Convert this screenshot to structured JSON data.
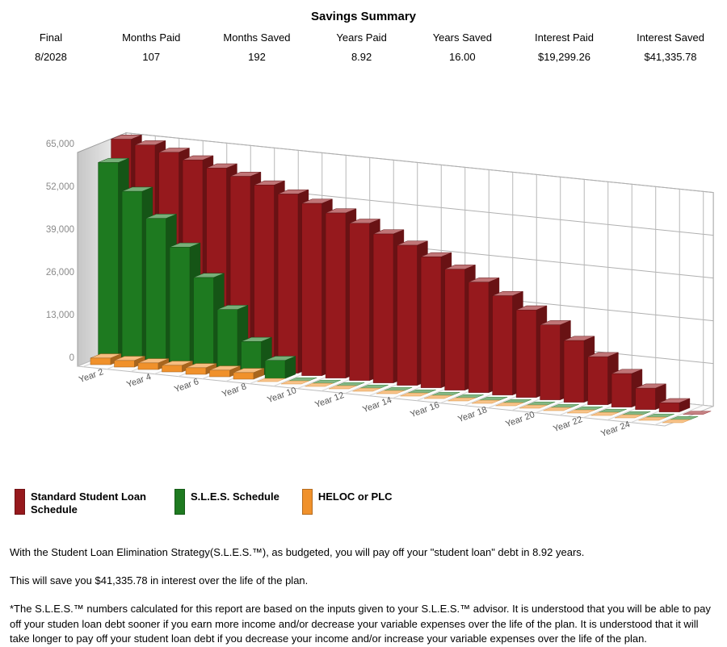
{
  "header": {
    "title": "Savings Summary",
    "columns": [
      {
        "label": "Final",
        "value": "8/2028"
      },
      {
        "label": "Months Paid",
        "value": "107"
      },
      {
        "label": "Months Saved",
        "value": "192"
      },
      {
        "label": "Years Paid",
        "value": "8.92"
      },
      {
        "label": "Years Saved",
        "value": "16.00"
      },
      {
        "label": "Interest Paid",
        "value": "$19,299.26"
      },
      {
        "label": "Interest Saved",
        "value": "$41,335.78"
      }
    ]
  },
  "chart_data": {
    "type": "bar",
    "style": "3d",
    "title": "",
    "xlabel": "",
    "ylabel": "",
    "ylim": [
      0,
      65000
    ],
    "yticks": [
      0,
      13000,
      26000,
      39000,
      52000,
      65000
    ],
    "grid": true,
    "legend_position": "bottom",
    "categories": [
      "Year 2",
      "Year 3",
      "Year 4",
      "Year 5",
      "Year 6",
      "Year 7",
      "Year 8",
      "Year 9",
      "Year 10",
      "Year 11",
      "Year 12",
      "Year 13",
      "Year 14",
      "Year 15",
      "Year 16",
      "Year 17",
      "Year 18",
      "Year 19",
      "Year 20",
      "Year 21",
      "Year 22",
      "Year 23",
      "Year 24",
      "Year 25",
      "Year 26"
    ],
    "x_tick_labels_shown": [
      "Year 2",
      "Year 4",
      "Year 6",
      "Year 8",
      "Year 10",
      "Year 12",
      "Year 14",
      "Year 16",
      "Year 18",
      "Year 20",
      "Year 22",
      "Year 24"
    ],
    "series": [
      {
        "name": "Standard Student Loan Schedule",
        "color": "#96191d",
        "values": [
          66000,
          65000,
          63500,
          61900,
          60200,
          58400,
          56500,
          54500,
          52400,
          50200,
          47800,
          45300,
          42600,
          39800,
          36800,
          33600,
          30200,
          26600,
          22800,
          18800,
          14600,
          10200,
          6500,
          2800,
          0
        ]
      },
      {
        "name": "S.L.E.S. Schedule",
        "color": "#1e7a20",
        "values": [
          60500,
          52500,
          45000,
          37000,
          28500,
          19500,
          10500,
          5500,
          0,
          0,
          0,
          0,
          0,
          0,
          0,
          0,
          0,
          0,
          0,
          0,
          0,
          0,
          0,
          0,
          0
        ]
      },
      {
        "name": "HELOC or PLC",
        "color": "#f0912b",
        "values": [
          2000,
          2000,
          2000,
          2000,
          2000,
          2000,
          2000,
          0,
          0,
          0,
          0,
          0,
          0,
          0,
          0,
          0,
          0,
          0,
          0,
          0,
          0,
          0,
          0,
          0,
          0
        ]
      }
    ]
  },
  "legend": {
    "items": [
      {
        "label": "Standard Student Loan Schedule",
        "color": "#96191d"
      },
      {
        "label": "S.L.E.S. Schedule",
        "color": "#1e7a20"
      },
      {
        "label": "HELOC or PLC",
        "color": "#f0912b"
      }
    ]
  },
  "notes": {
    "p1": "With the Student Loan Elimination Strategy(S.L.E.S.™), as budgeted, you will pay off your \"student loan\" debt in 8.92 years.",
    "p2": "This will save you $41,335.78 in interest over the life of the plan.",
    "p3": "*The S.L.E.S.™ numbers calculated for this report are based on the inputs given to your S.L.E.S.™ advisor. It is understood that you will be able to pay off your studen loan debt sooner if you earn more income and/or decrease your variable expenses over the life of the plan. It is understood that it will take longer to pay off your student loan debt if you decrease your income and/or increase your variable expenses over the life of the plan."
  }
}
